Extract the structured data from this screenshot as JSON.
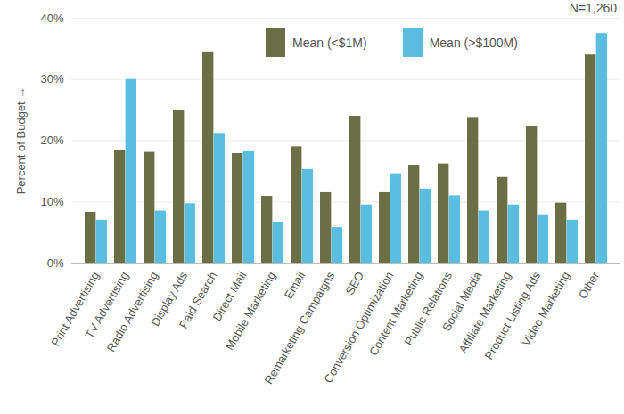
{
  "chart_data": {
    "type": "bar",
    "categories": [
      "Print Advertising",
      "TV Advertising",
      "Radio Advertising",
      "Display Ads",
      "Paid Search",
      "Direct Mail",
      "Mobile Marketing",
      "Email",
      "Remarketing Campaigns",
      "SEO",
      "Conversion Optimization",
      "Content Marketing",
      "Public Relations",
      "Social Media",
      "Affiliate Marketing",
      "Product Listing Ads",
      "Video Marketing",
      "Other"
    ],
    "series": [
      {
        "name": "Mean (<$1M)",
        "color": "#6b6f45",
        "values": [
          8.3,
          18.4,
          18.1,
          25,
          34.5,
          17.9,
          10.9,
          19,
          11.5,
          24,
          11.5,
          16,
          16.2,
          23.8,
          14,
          22.4,
          9.8,
          34
        ]
      },
      {
        "name": "Mean (>$100M)",
        "color": "#5bbde0",
        "values": [
          7,
          30,
          8.5,
          9.7,
          21.2,
          18.2,
          6.7,
          15.3,
          5.8,
          9.5,
          14.6,
          12.1,
          11,
          8.5,
          9.5,
          7.9,
          7,
          37.5
        ]
      }
    ],
    "y_label": "Percent of Budget",
    "annotation": "N=1,260",
    "ylim": [
      0,
      40
    ],
    "yticks": [
      {
        "value": 0,
        "label": "0%"
      },
      {
        "value": 10,
        "label": "10%"
      },
      {
        "value": 20,
        "label": "20%"
      },
      {
        "value": 30,
        "label": "30%"
      },
      {
        "value": 40,
        "label": "40%"
      }
    ],
    "grid": true,
    "legend": "top"
  }
}
